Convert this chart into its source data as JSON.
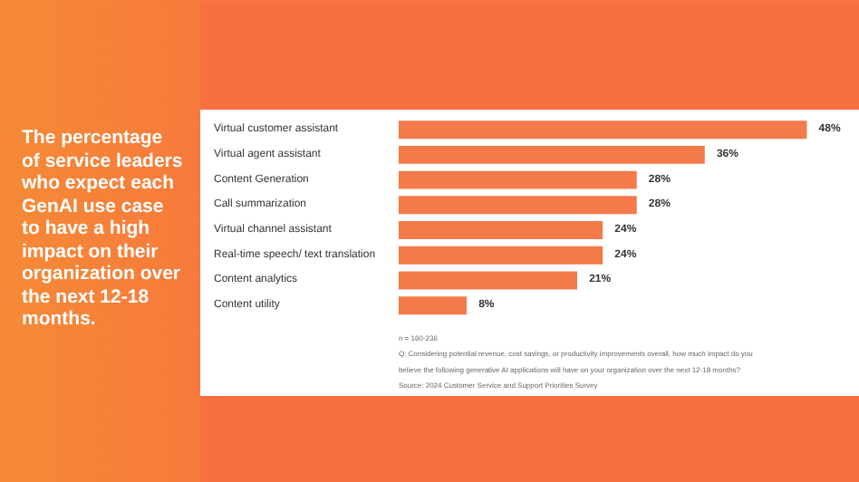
{
  "chart_data": {
    "type": "bar",
    "orientation": "horizontal",
    "title": "The percentage of service leaders who expect each GenAI use case to have a high impact on their organization over the next 12-18 months.",
    "categories": [
      "Virtual customer assistant",
      "Virtual agent assistant",
      "Content Generation",
      "Call summarization",
      "Virtual channel assistant",
      "Real-time speech/ text translation",
      "Content analytics",
      "Content utility"
    ],
    "values": [
      48,
      36,
      28,
      28,
      24,
      24,
      21,
      8
    ],
    "value_labels": [
      "48%",
      "36%",
      "28%",
      "28%",
      "24%",
      "24%",
      "21%",
      "8%"
    ],
    "color": "#f47a4a",
    "annotations": [
      "n = 160-236",
      "Q: Considering potential revenue, cost savings, or productivity improvements overall, how much impact do you",
      "believe the following generative AI applications will have on your organization over the next 12-18 months?",
      "Source: 2024 Customer Service and Support Priorities Survey"
    ],
    "grid": false
  }
}
